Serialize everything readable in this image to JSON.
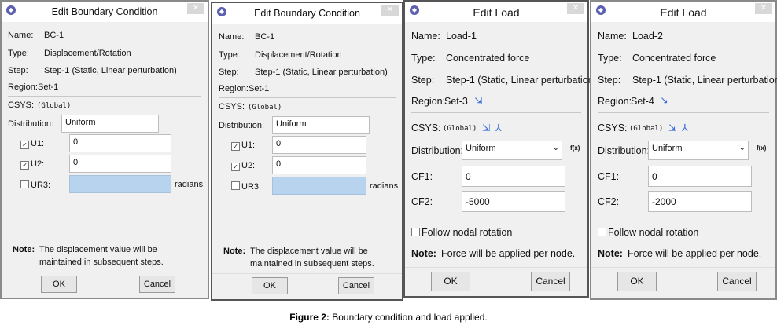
{
  "bc_panels": [
    {
      "title": "Edit Boundary Condition",
      "name_label": "Name:",
      "name": "BC-1",
      "type_label": "Type:",
      "type": "Displacement/Rotation",
      "step_label": "Step:",
      "step": "Step-1 (Static, Linear perturbation)",
      "region_label": "Region:",
      "region": "Set-1",
      "csys_label": "CSYS:",
      "csys": "(Global)",
      "distribution_label": "Distribution:",
      "distribution": "Uniform",
      "u1_label": "U1:",
      "u1": "0",
      "u1_checked": true,
      "u2_label": "U2:",
      "u2": "0",
      "u2_checked": true,
      "ur3_label": "UR3:",
      "ur3": "",
      "ur3_checked": false,
      "ur3_unit": "radians",
      "note_label": "Note:",
      "note_line1": "The displacement value will be",
      "note_line2": "maintained in subsequent steps.",
      "ok": "OK",
      "cancel": "Cancel"
    },
    {
      "title": "Edit Boundary Condition",
      "name_label": "Name:",
      "name": "BC-1",
      "type_label": "Type:",
      "type": "Displacement/Rotation",
      "step_label": "Step:",
      "step": "Step-1 (Static, Linear perturbation)",
      "region_label": "Region:",
      "region": "Set-1",
      "csys_label": "CSYS:",
      "csys": "(Global)",
      "distribution_label": "Distribution:",
      "distribution": "Uniform",
      "u1_label": "U1:",
      "u1": "0",
      "u1_checked": true,
      "u2_label": "U2:",
      "u2": "0",
      "u2_checked": true,
      "ur3_label": "UR3:",
      "ur3": "",
      "ur3_checked": false,
      "ur3_unit": "radians",
      "note_label": "Note:",
      "note_line1": "The displacement value will be",
      "note_line2": "maintained in subsequent steps.",
      "ok": "OK",
      "cancel": "Cancel"
    }
  ],
  "load_panels": [
    {
      "title": "Edit Load",
      "name_label": "Name:",
      "name": "Load-1",
      "type_label": "Type:",
      "type": "Concentrated force",
      "step_label": "Step:",
      "step": "Step-1 (Static, Linear perturbation)",
      "region_label": "Region:",
      "region": "Set-3",
      "csys_label": "CSYS:",
      "csys": "(Global)",
      "distribution_label": "Distribution:",
      "distribution": "Uniform",
      "fx": "f(x)",
      "cf1_label": "CF1:",
      "cf1": "0",
      "cf2_label": "CF2:",
      "cf2": "-5000",
      "follow_label": "Follow nodal rotation",
      "follow_checked": false,
      "note_label": "Note:",
      "note": "Force will be applied per node.",
      "ok": "OK",
      "cancel": "Cancel"
    },
    {
      "title": "Edit Load",
      "name_label": "Name:",
      "name": "Load-2",
      "type_label": "Type:",
      "type": "Concentrated force",
      "step_label": "Step:",
      "step": "Step-1 (Static, Linear perturbation)",
      "region_label": "Region:",
      "region": "Set-4",
      "csys_label": "CSYS:",
      "csys": "(Global)",
      "distribution_label": "Distribution:",
      "distribution": "Uniform",
      "fx": "f(x)",
      "cf1_label": "CF1:",
      "cf1": "0",
      "cf2_label": "CF2:",
      "cf2": "-2000",
      "follow_label": "Follow nodal rotation",
      "follow_checked": false,
      "note_label": "Note:",
      "note": "Force will be applied per node.",
      "ok": "OK",
      "cancel": "Cancel"
    }
  ],
  "caption": {
    "label": "Figure 2:",
    "text": " Boundary condition and load applied."
  }
}
